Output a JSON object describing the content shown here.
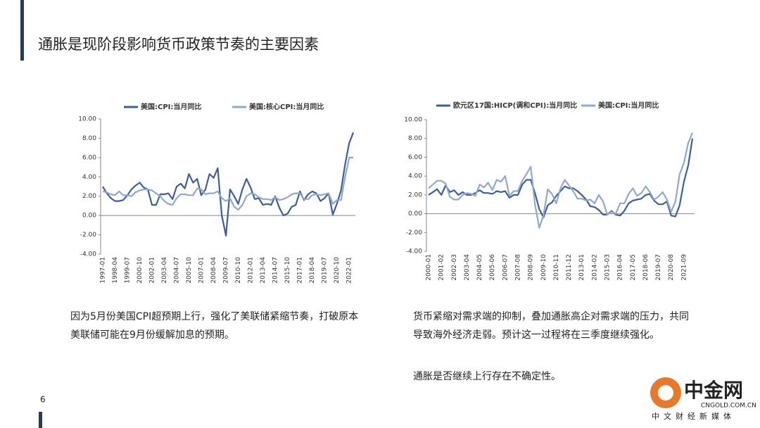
{
  "title": "通胀是现阶段影响货币政策节奏的主要因素",
  "page_number": "6",
  "notes": [
    "因为5月份美国CPI超预期上行，强化了美联储紧缩节奏，打破原本美联储可能在9月份缓解加息的预期。",
    "货币紧缩对需求端的抑制，叠加通胀高企对需求端的压力，共同导致海外经济走弱。预计这一过程将在三季度继续强化。",
    "通胀是否继续上行存在不确定性。"
  ],
  "logo": {
    "name": "中金网",
    "domain": "CNGOLD.COM.CN",
    "tagline": "中文财经新媒体"
  },
  "chart_data": [
    {
      "type": "line",
      "categories": [
        "1997-01",
        null,
        null,
        "1998-04",
        null,
        null,
        "1999-07",
        null,
        null,
        "2000-10",
        null,
        null,
        "2002-01",
        null,
        null,
        "2003-04",
        null,
        null,
        "2004-07",
        null,
        null,
        "2005-10",
        null,
        null,
        "2007-01",
        null,
        null,
        "2008-04",
        null,
        null,
        "2009-07",
        null,
        null,
        "2010-10",
        null,
        null,
        "2012-01",
        null,
        null,
        "2013-04",
        null,
        null,
        "2014-07",
        null,
        null,
        "2015-10",
        null,
        null,
        "2017-01",
        null,
        null,
        "2018-04",
        null,
        null,
        "2019-07",
        null,
        null,
        "2020-10",
        null,
        null,
        "2022-01",
        null
      ],
      "series": [
        {
          "name": "美国:CPI:当月同比",
          "color": "#3d5f9a",
          "values": [
            3.0,
            2.3,
            1.8,
            1.5,
            1.5,
            1.6,
            2.1,
            2.7,
            3.1,
            3.4,
            2.9,
            2.7,
            1.1,
            1.1,
            2.2,
            2.2,
            2.3,
            1.7,
            3.0,
            3.3,
            2.8,
            4.3,
            3.4,
            3.8,
            2.1,
            2.7,
            4.3,
            3.9,
            4.9,
            0.0,
            -2.1,
            2.7,
            2.0,
            1.2,
            2.7,
            3.8,
            2.9,
            1.7,
            1.8,
            1.1,
            1.2,
            1.1,
            2.0,
            0.8,
            0.0,
            0.2,
            0.9,
            1.1,
            2.5,
            1.6,
            2.2,
            2.5,
            2.3,
            1.5,
            1.8,
            2.3,
            0.1,
            1.2,
            2.6,
            5.3,
            7.5,
            8.6
          ]
        },
        {
          "name": "美国:核心CPI:当月同比",
          "color": "#8fa8d0",
          "values": [
            2.5,
            2.4,
            2.2,
            2.1,
            2.5,
            2.1,
            2.1,
            2.0,
            2.4,
            2.6,
            2.7,
            2.7,
            2.6,
            2.3,
            2.0,
            1.5,
            1.2,
            1.1,
            1.8,
            2.2,
            2.2,
            2.1,
            2.1,
            2.8,
            2.7,
            2.2,
            2.3,
            2.3,
            2.5,
            1.8,
            1.5,
            1.8,
            0.9,
            0.6,
            1.1,
            2.0,
            2.3,
            2.2,
            1.9,
            1.7,
            1.7,
            1.6,
            1.9,
            1.6,
            1.7,
            1.9,
            2.2,
            2.3,
            2.3,
            1.7,
            1.7,
            2.1,
            2.2,
            2.1,
            2.2,
            2.3,
            1.2,
            1.6,
            1.6,
            4.0,
            6.0,
            6.0
          ]
        }
      ],
      "ylim": [
        -4,
        10
      ],
      "yticks": [
        {
          "value": -4,
          "label": "-4.00"
        },
        {
          "value": -2,
          "label": "-2.00"
        },
        {
          "value": 0,
          "label": "0.00"
        },
        {
          "value": 2,
          "label": "2.00"
        },
        {
          "value": 4,
          "label": "4.00"
        },
        {
          "value": 6,
          "label": "6.00"
        },
        {
          "value": 8,
          "label": "8.00"
        },
        {
          "value": 10,
          "label": "10.00"
        }
      ],
      "legend": "top"
    },
    {
      "type": "line",
      "categories": [
        "2000-01",
        null,
        null,
        "2001-02",
        null,
        null,
        "2002-03",
        null,
        null,
        "2003-04",
        null,
        null,
        "2004-05",
        null,
        null,
        "2005-06",
        null,
        null,
        "2006-07",
        null,
        null,
        "2007-08",
        null,
        null,
        "2008-09",
        null,
        null,
        "2009-10",
        null,
        null,
        "2010-11",
        null,
        null,
        "2011-12",
        null,
        null,
        "2013-01",
        null,
        null,
        "2014-02",
        null,
        null,
        "2015-03",
        null,
        null,
        "2016-04",
        null,
        null,
        "2017-05",
        null,
        null,
        "2018-06",
        null,
        null,
        "2019-07",
        null,
        null,
        "2020-08",
        null,
        null,
        "2021-09",
        null,
        null
      ],
      "series": [
        {
          "name": "欧元区17国:HICP(调和CPI):当月同比",
          "color": "#3d5f9a",
          "values": [
            2.0,
            2.3,
            2.6,
            2.0,
            3.0,
            2.3,
            2.5,
            2.0,
            2.3,
            2.0,
            2.0,
            2.2,
            2.5,
            2.2,
            2.2,
            2.1,
            2.4,
            2.3,
            2.4,
            1.7,
            2.0,
            2.0,
            3.1,
            3.6,
            3.6,
            2.2,
            0.5,
            -0.4,
            0.9,
            1.2,
            1.9,
            2.4,
            2.9,
            2.7,
            2.7,
            2.4,
            2.0,
            1.5,
            0.8,
            0.7,
            0.4,
            -0.1,
            -0.1,
            0.3,
            -0.1,
            -0.2,
            0.3,
            1.1,
            1.4,
            1.5,
            1.6,
            2.0,
            2.1,
            1.4,
            1.0,
            1.0,
            1.3,
            -0.2,
            -0.3,
            0.9,
            3.4,
            5.1,
            8.0
          ]
        },
        {
          "name": "美国:CPI:当月同比",
          "color": "#8fa8d0",
          "values": [
            2.7,
            3.1,
            3.5,
            3.5,
            3.2,
            1.8,
            1.5,
            1.5,
            2.0,
            2.2,
            2.1,
            1.9,
            3.1,
            2.8,
            3.3,
            2.5,
            3.6,
            3.4,
            4.0,
            1.9,
            2.4,
            2.4,
            3.5,
            4.2,
            5.0,
            1.0,
            -1.5,
            -0.2,
            2.6,
            2.1,
            1.1,
            2.7,
            3.6,
            3.0,
            2.4,
            1.6,
            1.6,
            1.4,
            1.5,
            1.1,
            2.0,
            1.3,
            -0.1,
            0.2,
            0.0,
            1.1,
            1.1,
            2.1,
            2.7,
            1.9,
            2.2,
            2.9,
            2.3,
            1.5,
            1.8,
            2.3,
            1.5,
            0.2,
            1.3,
            4.2,
            5.4,
            7.5,
            8.6
          ]
        }
      ],
      "ylim": [
        -4,
        10
      ],
      "yticks": [
        {
          "value": -4,
          "label": "-4.00"
        },
        {
          "value": -2,
          "label": "-2.00"
        },
        {
          "value": 0,
          "label": "0.00"
        },
        {
          "value": 2,
          "label": "2.00"
        },
        {
          "value": 4,
          "label": "4.00"
        },
        {
          "value": 6,
          "label": "6.00"
        },
        {
          "value": 8,
          "label": "8.00"
        },
        {
          "value": 10,
          "label": "10.00"
        }
      ],
      "legend": "top"
    }
  ]
}
